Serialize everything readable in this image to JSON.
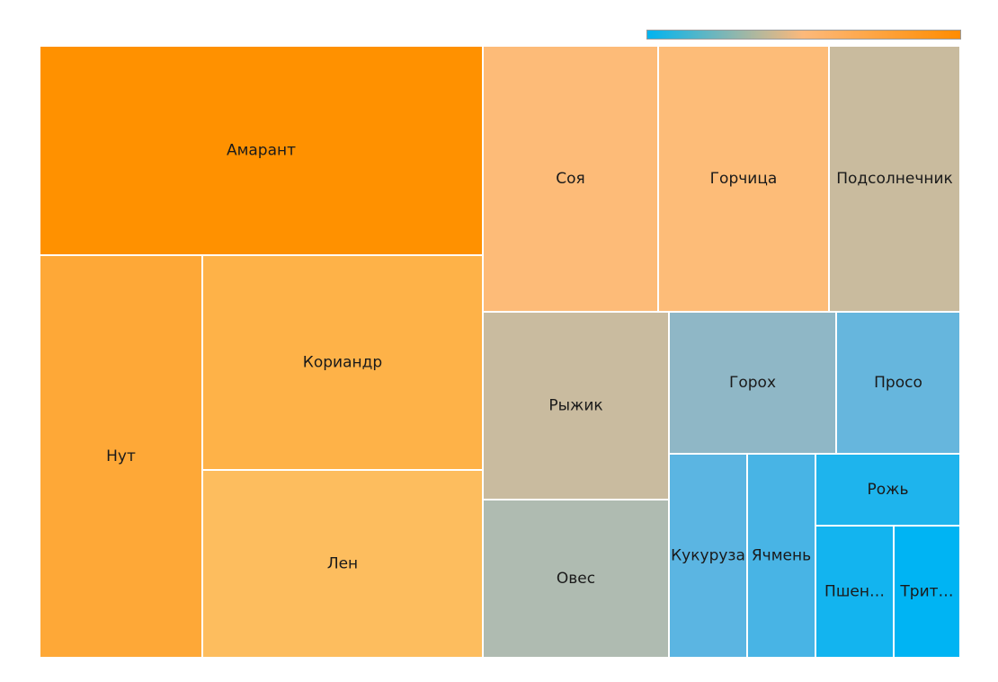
{
  "chart_data": {
    "type": "treemap",
    "color_scale": {
      "low": "#00b4f0",
      "mid": "#fdb97a",
      "high": "#ff8c00"
    },
    "items": [
      {
        "label": "Амарант",
        "display": "Амарант",
        "value": 1144,
        "color": "#ff9100"
      },
      {
        "label": "Нут",
        "display": "Нут",
        "value": 616,
        "color": "#fea837"
      },
      {
        "label": "Кориандр",
        "display": "Кориандр",
        "value": 746,
        "color": "#feb248"
      },
      {
        "label": "Лен",
        "display": "Лен",
        "value": 651,
        "color": "#fdbd5e"
      },
      {
        "label": "Соя",
        "display": "Соя",
        "value": 573,
        "color": "#fdbb78"
      },
      {
        "label": "Горчица",
        "display": "Горчица",
        "value": 563,
        "color": "#fdbc78"
      },
      {
        "label": "Подсолнечник",
        "display": "Подсолнечник",
        "value": 429,
        "color": "#c9bb9e"
      },
      {
        "label": "Рыжик",
        "display": "Рыжик",
        "value": 434,
        "color": "#c9bb9f"
      },
      {
        "label": "Овес",
        "display": "Овес",
        "value": 358,
        "color": "#afbbb1"
      },
      {
        "label": "Горох",
        "display": "Горох",
        "value": 289,
        "color": "#8fb7c6"
      },
      {
        "label": "Просо",
        "display": "Просо",
        "value": 214,
        "color": "#66b6dd"
      },
      {
        "label": "Кукуруза",
        "display": "Кукуруза",
        "value": 196,
        "color": "#5bb5e2"
      },
      {
        "label": "Ячмень",
        "display": "Ячмень",
        "value": 173,
        "color": "#48b4e5"
      },
      {
        "label": "Рожь",
        "display": "Рожь",
        "value": 124,
        "color": "#1eb4ed"
      },
      {
        "label": "Пшеница",
        "display": "Пшен…",
        "value": 102,
        "color": "#13b4ef"
      },
      {
        "label": "Тритикале",
        "display": "Трит…",
        "value": 89,
        "color": "#00b4f3"
      }
    ]
  }
}
